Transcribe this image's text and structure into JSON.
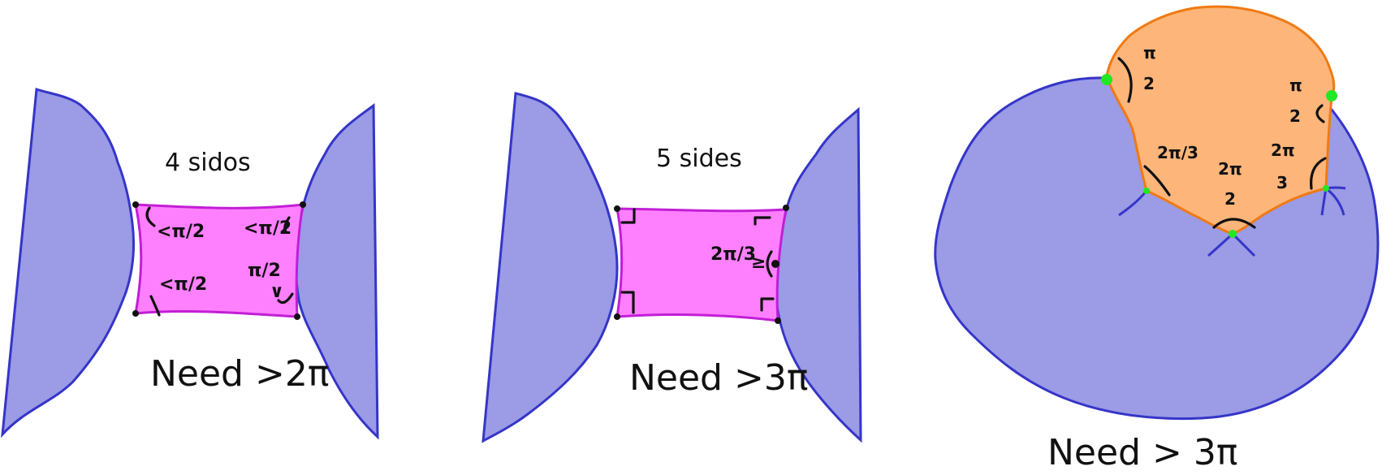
{
  "colors": {
    "blue_fill": "#9b9be6",
    "blue_stroke": "#3535c8",
    "magenta_fill": "#ff80ff",
    "magenta_stroke": "#c21ed6",
    "orange_fill": "#fdb57a",
    "orange_stroke": "#f07a12",
    "green_dot": "#22e822",
    "ink": "#111111"
  },
  "panel1": {
    "title": "4 sidos",
    "caption": "Need >2π",
    "labels": [
      "<π/2",
      "<π/2",
      "<π/2",
      "π/2",
      "∨"
    ]
  },
  "panel2": {
    "title": "5 sides",
    "caption": "Need >3π",
    "angle_label": "2π/3",
    "ge": "≥"
  },
  "panel3": {
    "caption": "Need > 3π",
    "angle_pi2_left_num": "π",
    "angle_pi2_left_den": "2",
    "angle_pi2_right_num": "π",
    "angle_pi2_right_den": "2",
    "angle_2pi3_left": "2π/3",
    "angle_2pi2_num": "2π",
    "angle_2pi2_den": "2",
    "angle_2pi3_right_num": "2π",
    "angle_2pi3_right_den": "3"
  }
}
